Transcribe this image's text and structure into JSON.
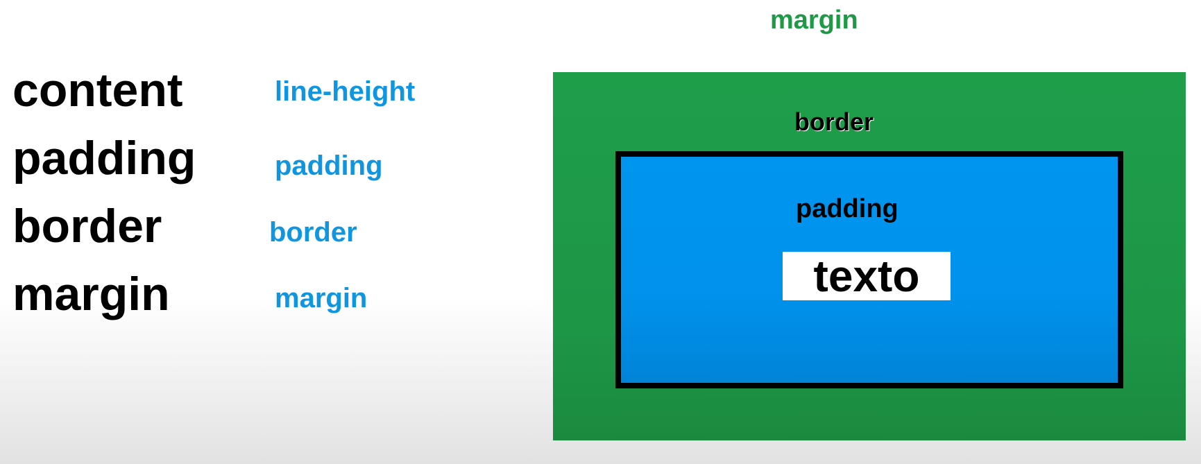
{
  "left_terms": [
    "content",
    "padding",
    "border",
    "margin"
  ],
  "css_properties": [
    "line-height",
    "padding",
    "border",
    "margin"
  ],
  "box_model": {
    "margin_label": "margin",
    "border_label": "border",
    "padding_label": "padding",
    "content_text": "texto"
  },
  "colors": {
    "margin": "#1f9e4a",
    "padding": "#0095ef",
    "border": "#000000",
    "content": "#ffffff",
    "property_text": "#1096e0",
    "margin_label_text": "#1e9a46"
  }
}
